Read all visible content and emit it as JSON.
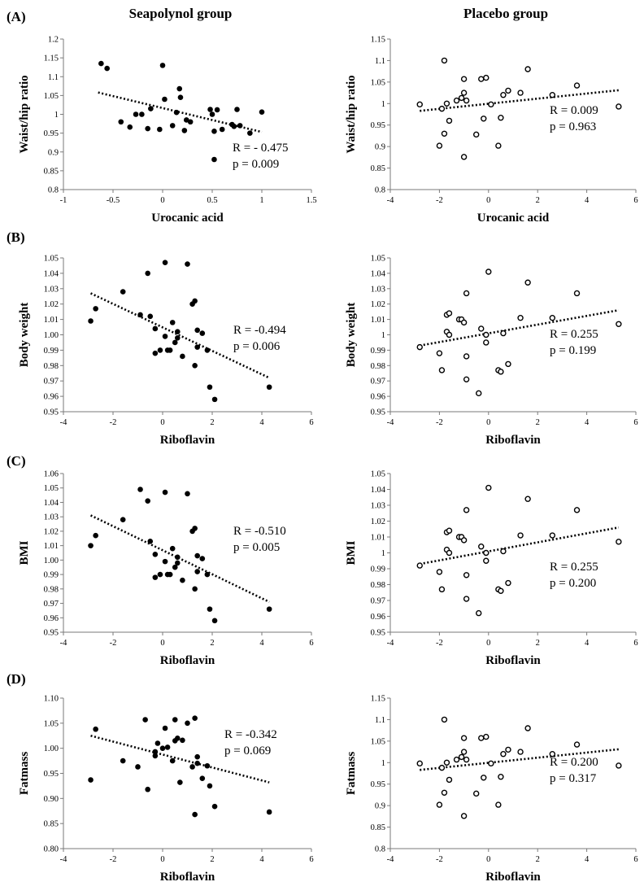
{
  "figure": {
    "left_column_title": "Seapolynol group",
    "right_column_title": "Placebo group",
    "row_letters": [
      "(A)",
      "(B)",
      "(C)",
      "(D)"
    ]
  },
  "chart_data": [
    {
      "type": "scatter",
      "group": "Seapolynol group",
      "row": "(A)",
      "xlabel": "Urocanic acid",
      "ylabel": "Waist/hip ratio",
      "xlim": [
        -1,
        1.5
      ],
      "ylim": [
        0.8,
        1.2
      ],
      "xticks": [
        "-1",
        "-0.5",
        "0",
        "0.5",
        "1",
        "1.5"
      ],
      "yticks": [
        "0.8",
        "0.85",
        "0.9",
        "0.95",
        "1",
        "1.05",
        "1.1",
        "1.15",
        "1.2"
      ],
      "marker": "filled",
      "points": [
        [
          -0.62,
          1.135
        ],
        [
          -0.56,
          1.122
        ],
        [
          -0.42,
          0.98
        ],
        [
          -0.33,
          0.966
        ],
        [
          -0.27,
          1.0
        ],
        [
          -0.21,
          1.0
        ],
        [
          -0.15,
          0.962
        ],
        [
          -0.12,
          1.015
        ],
        [
          -0.03,
          0.96
        ],
        [
          0.0,
          1.13
        ],
        [
          0.02,
          1.04
        ],
        [
          0.1,
          0.97
        ],
        [
          0.14,
          1.005
        ],
        [
          0.17,
          1.068
        ],
        [
          0.18,
          1.045
        ],
        [
          0.22,
          0.957
        ],
        [
          0.24,
          0.985
        ],
        [
          0.28,
          0.98
        ],
        [
          0.48,
          1.013
        ],
        [
          0.5,
          1.0
        ],
        [
          0.52,
          0.955
        ],
        [
          0.55,
          1.012
        ],
        [
          0.52,
          0.88
        ],
        [
          0.6,
          0.96
        ],
        [
          0.7,
          0.973
        ],
        [
          0.75,
          1.013
        ],
        [
          0.78,
          0.97
        ],
        [
          0.88,
          0.95
        ],
        [
          1.0,
          1.006
        ],
        [
          0.72,
          0.968
        ]
      ],
      "trendline": [
        [
          -0.65,
          1.058
        ],
        [
          1.0,
          0.953
        ]
      ],
      "annotations": [
        "R = - 0.475",
        "p = 0.009"
      ]
    },
    {
      "type": "scatter",
      "group": "Placebo group",
      "row": "(A)",
      "xlabel": "Urocanic acid",
      "ylabel": "Waist/hip ratio",
      "xlim": [
        -4,
        6
      ],
      "ylim": [
        0.8,
        1.15
      ],
      "xticks": [
        "-4",
        "-2",
        "0",
        "2",
        "4",
        "6"
      ],
      "yticks": [
        "0.8",
        "0.85",
        "0.9",
        "0.95",
        "1",
        "1.05",
        "1.1",
        "1.15"
      ],
      "marker": "open",
      "points": [
        [
          -2.8,
          0.998
        ],
        [
          -1.8,
          1.1
        ],
        [
          -1.9,
          0.988
        ],
        [
          -1.8,
          0.93
        ],
        [
          -1.6,
          0.96
        ],
        [
          -2.0,
          0.902
        ],
        [
          -1.7,
          1.0
        ],
        [
          -1.3,
          1.007
        ],
        [
          -1.1,
          1.013
        ],
        [
          -1.0,
          1.025
        ],
        [
          -1.0,
          1.057
        ],
        [
          -0.9,
          1.007
        ],
        [
          -1.0,
          0.876
        ],
        [
          -0.5,
          0.928
        ],
        [
          -0.3,
          1.057
        ],
        [
          -0.1,
          1.06
        ],
        [
          -0.2,
          0.965
        ],
        [
          0.1,
          0.998
        ],
        [
          0.4,
          0.902
        ],
        [
          0.5,
          0.967
        ],
        [
          0.6,
          1.02
        ],
        [
          0.8,
          1.03
        ],
        [
          1.3,
          1.025
        ],
        [
          1.6,
          1.08
        ],
        [
          2.6,
          1.02
        ],
        [
          3.6,
          1.042
        ],
        [
          5.3,
          0.993
        ]
      ],
      "trendline": [
        [
          -2.8,
          0.983
        ],
        [
          5.3,
          1.031
        ]
      ],
      "annotations": [
        "R = 0.009",
        "p = 0.963"
      ]
    },
    {
      "type": "scatter",
      "group": "Seapolynol group",
      "row": "(B)",
      "xlabel": "Riboflavin",
      "ylabel": "Body weight",
      "xlim": [
        -4,
        6
      ],
      "ylim": [
        0.95,
        1.05
      ],
      "xticks": [
        "-4",
        "-2",
        "0",
        "2",
        "4",
        "6"
      ],
      "yticks": [
        "0.95",
        "0.96",
        "0.97",
        "0.98",
        "0.99",
        "1.00",
        "1.01",
        "1.02",
        "1.03",
        "1.04",
        "1.05"
      ],
      "marker": "filled",
      "points": [
        [
          -2.9,
          1.009
        ],
        [
          -2.7,
          1.017
        ],
        [
          -1.6,
          1.028
        ],
        [
          -0.9,
          1.013
        ],
        [
          -0.6,
          1.04
        ],
        [
          -0.5,
          1.012
        ],
        [
          -0.3,
          1.004
        ],
        [
          -0.3,
          0.988
        ],
        [
          -0.1,
          0.99
        ],
        [
          0.1,
          1.047
        ],
        [
          0.1,
          0.999
        ],
        [
          0.2,
          0.99
        ],
        [
          0.4,
          1.008
        ],
        [
          0.5,
          0.995
        ],
        [
          0.6,
          1.002
        ],
        [
          0.6,
          0.998
        ],
        [
          0.8,
          0.986
        ],
        [
          1.0,
          1.046
        ],
        [
          1.2,
          1.02
        ],
        [
          1.3,
          1.022
        ],
        [
          1.3,
          0.98
        ],
        [
          1.4,
          1.003
        ],
        [
          1.4,
          0.992
        ],
        [
          1.6,
          1.001
        ],
        [
          1.8,
          0.99
        ],
        [
          1.9,
          0.966
        ],
        [
          2.1,
          0.958
        ],
        [
          4.3,
          0.966
        ],
        [
          0.3,
          0.99
        ]
      ],
      "trendline": [
        [
          -2.9,
          1.027
        ],
        [
          4.3,
          0.972
        ]
      ],
      "annotations": [
        "R = -0.494",
        "p = 0.006"
      ]
    },
    {
      "type": "scatter",
      "group": "Placebo group",
      "row": "(B)",
      "xlabel": "Riboflavin",
      "ylabel": "Body weight",
      "xlim": [
        -4,
        6
      ],
      "ylim": [
        0.95,
        1.05
      ],
      "xticks": [
        "-4",
        "-2",
        "0",
        "2",
        "4",
        "6"
      ],
      "yticks": [
        "0.95",
        "0.96",
        "0.97",
        "0.98",
        "0.99",
        "1",
        "1.01",
        "1.02",
        "1.03",
        "1.04",
        "1.05"
      ],
      "marker": "open",
      "points": [
        [
          -2.8,
          0.992
        ],
        [
          -2.0,
          0.988
        ],
        [
          -1.9,
          0.977
        ],
        [
          -1.7,
          1.013
        ],
        [
          -1.6,
          1.014
        ],
        [
          -1.7,
          1.002
        ],
        [
          -1.6,
          1.0
        ],
        [
          -1.2,
          1.01
        ],
        [
          -1.1,
          1.01
        ],
        [
          -1.0,
          1.008
        ],
        [
          -0.9,
          1.027
        ],
        [
          -0.9,
          0.986
        ],
        [
          -0.9,
          0.971
        ],
        [
          -0.4,
          0.962
        ],
        [
          -0.3,
          1.004
        ],
        [
          -0.1,
          1.0
        ],
        [
          -0.1,
          0.995
        ],
        [
          0.0,
          1.041
        ],
        [
          0.4,
          0.977
        ],
        [
          0.5,
          0.976
        ],
        [
          0.6,
          1.001
        ],
        [
          0.8,
          0.981
        ],
        [
          1.3,
          1.011
        ],
        [
          1.6,
          1.034
        ],
        [
          2.6,
          1.011
        ],
        [
          3.6,
          1.027
        ],
        [
          5.3,
          1.007
        ]
      ],
      "trendline": [
        [
          -2.8,
          0.993
        ],
        [
          5.3,
          1.016
        ]
      ],
      "annotations": [
        "R = 0.255",
        "p = 0.199"
      ]
    },
    {
      "type": "scatter",
      "group": "Seapolynol group",
      "row": "(C)",
      "xlabel": "Riboflavin",
      "ylabel": "BMI",
      "xlim": [
        -4,
        6
      ],
      "ylim": [
        0.95,
        1.06
      ],
      "xticks": [
        "-4",
        "-2",
        "0",
        "2",
        "4",
        "6"
      ],
      "yticks": [
        "0.95",
        "0.96",
        "0.97",
        "0.98",
        "0.99",
        "1.00",
        "1.01",
        "1.02",
        "1.03",
        "1.04",
        "1.05",
        "1.06"
      ],
      "marker": "filled",
      "points": [
        [
          -2.9,
          1.01
        ],
        [
          -2.7,
          1.017
        ],
        [
          -1.6,
          1.028
        ],
        [
          -0.9,
          1.049
        ],
        [
          -0.6,
          1.041
        ],
        [
          -0.5,
          1.013
        ],
        [
          -0.3,
          1.004
        ],
        [
          -0.3,
          0.988
        ],
        [
          -0.1,
          0.99
        ],
        [
          0.1,
          1.047
        ],
        [
          0.1,
          0.999
        ],
        [
          0.2,
          0.99
        ],
        [
          0.4,
          1.008
        ],
        [
          0.5,
          0.995
        ],
        [
          0.6,
          1.002
        ],
        [
          0.6,
          0.998
        ],
        [
          0.8,
          0.986
        ],
        [
          1.0,
          1.046
        ],
        [
          1.2,
          1.02
        ],
        [
          1.3,
          1.022
        ],
        [
          1.3,
          0.98
        ],
        [
          1.4,
          1.003
        ],
        [
          1.4,
          0.992
        ],
        [
          1.6,
          1.001
        ],
        [
          1.8,
          0.99
        ],
        [
          1.9,
          0.966
        ],
        [
          2.1,
          0.958
        ],
        [
          4.3,
          0.966
        ],
        [
          0.3,
          0.99
        ]
      ],
      "trendline": [
        [
          -2.9,
          1.031
        ],
        [
          4.3,
          0.971
        ]
      ],
      "annotations": [
        "R = -0.510",
        "p = 0.005"
      ]
    },
    {
      "type": "scatter",
      "group": "Placebo group",
      "row": "(C)",
      "xlabel": "Riboflavin",
      "ylabel": "BMI",
      "xlim": [
        -4,
        6
      ],
      "ylim": [
        0.95,
        1.05
      ],
      "xticks": [
        "-4",
        "-2",
        "0",
        "2",
        "4",
        "6"
      ],
      "yticks": [
        "0.95",
        "0.96",
        "0.97",
        "0.98",
        "0.99",
        "1",
        "1.01",
        "1.02",
        "1.03",
        "1.04",
        "1.05"
      ],
      "marker": "open",
      "points": [
        [
          -2.8,
          0.992
        ],
        [
          -2.0,
          0.988
        ],
        [
          -1.9,
          0.977
        ],
        [
          -1.7,
          1.013
        ],
        [
          -1.6,
          1.014
        ],
        [
          -1.7,
          1.002
        ],
        [
          -1.6,
          1.0
        ],
        [
          -1.2,
          1.01
        ],
        [
          -1.1,
          1.01
        ],
        [
          -1.0,
          1.008
        ],
        [
          -0.9,
          1.027
        ],
        [
          -0.9,
          0.986
        ],
        [
          -0.9,
          0.971
        ],
        [
          -0.4,
          0.962
        ],
        [
          -0.3,
          1.004
        ],
        [
          -0.1,
          1.0
        ],
        [
          -0.1,
          0.995
        ],
        [
          0.0,
          1.041
        ],
        [
          0.4,
          0.977
        ],
        [
          0.5,
          0.976
        ],
        [
          0.6,
          1.001
        ],
        [
          0.8,
          0.981
        ],
        [
          1.3,
          1.011
        ],
        [
          1.6,
          1.034
        ],
        [
          2.6,
          1.011
        ],
        [
          3.6,
          1.027
        ],
        [
          5.3,
          1.007
        ]
      ],
      "trendline": [
        [
          -2.8,
          0.993
        ],
        [
          5.3,
          1.016
        ]
      ],
      "annotations": [
        "R = 0.255",
        "p = 0.200"
      ]
    },
    {
      "type": "scatter",
      "group": "Seapolynol group",
      "row": "(D)",
      "xlabel": "Riboflavin",
      "ylabel": "Fatmass",
      "xlim": [
        -4,
        6
      ],
      "ylim": [
        0.8,
        1.1
      ],
      "xticks": [
        "-4",
        "-2",
        "0",
        "2",
        "4",
        "6"
      ],
      "yticks": [
        "0.80",
        "0.85",
        "0.90",
        "0.95",
        "1.00",
        "1.05",
        "1.10"
      ],
      "marker": "filled",
      "points": [
        [
          -2.9,
          0.937
        ],
        [
          -2.7,
          1.038
        ],
        [
          -1.6,
          0.975
        ],
        [
          -1.0,
          0.963
        ],
        [
          -0.7,
          1.057
        ],
        [
          -0.6,
          0.918
        ],
        [
          -0.3,
          0.993
        ],
        [
          -0.3,
          0.985
        ],
        [
          -0.2,
          1.01
        ],
        [
          0.1,
          1.04
        ],
        [
          0.0,
          1.0
        ],
        [
          0.2,
          1.002
        ],
        [
          0.4,
          0.975
        ],
        [
          0.5,
          1.057
        ],
        [
          0.5,
          1.015
        ],
        [
          0.6,
          1.02
        ],
        [
          0.7,
          0.932
        ],
        [
          0.8,
          1.016
        ],
        [
          1.0,
          1.05
        ],
        [
          1.2,
          0.963
        ],
        [
          1.3,
          1.06
        ],
        [
          1.3,
          0.868
        ],
        [
          1.4,
          0.983
        ],
        [
          1.4,
          0.97
        ],
        [
          1.6,
          0.94
        ],
        [
          1.8,
          0.965
        ],
        [
          1.9,
          0.925
        ],
        [
          2.1,
          0.884
        ],
        [
          4.3,
          0.873
        ]
      ],
      "trendline": [
        [
          -2.9,
          1.025
        ],
        [
          4.3,
          0.932
        ]
      ],
      "annotations": [
        "R = -0.342",
        "p = 0.069"
      ]
    },
    {
      "type": "scatter",
      "group": "Placebo group",
      "row": "(D)",
      "xlabel": "Riboflavin",
      "ylabel": "Fatmass",
      "xlim": [
        -4,
        6
      ],
      "ylim": [
        0.8,
        1.15
      ],
      "xticks": [
        "-4",
        "-2",
        "0",
        "2",
        "4",
        "6"
      ],
      "yticks": [
        "0.8",
        "0.85",
        "0.9",
        "0.95",
        "1",
        "1.05",
        "1.1",
        "1.15"
      ],
      "marker": "open",
      "points": [
        [
          -2.8,
          0.998
        ],
        [
          -1.8,
          1.1
        ],
        [
          -1.9,
          0.988
        ],
        [
          -1.8,
          0.93
        ],
        [
          -1.6,
          0.96
        ],
        [
          -2.0,
          0.902
        ],
        [
          -1.7,
          1.0
        ],
        [
          -1.3,
          1.007
        ],
        [
          -1.1,
          1.013
        ],
        [
          -1.0,
          1.025
        ],
        [
          -1.0,
          1.057
        ],
        [
          -0.9,
          1.007
        ],
        [
          -1.0,
          0.876
        ],
        [
          -0.5,
          0.928
        ],
        [
          -0.3,
          1.057
        ],
        [
          -0.1,
          1.06
        ],
        [
          -0.2,
          0.965
        ],
        [
          0.1,
          0.998
        ],
        [
          0.4,
          0.902
        ],
        [
          0.5,
          0.967
        ],
        [
          0.6,
          1.02
        ],
        [
          0.8,
          1.03
        ],
        [
          1.3,
          1.025
        ],
        [
          1.6,
          1.08
        ],
        [
          2.6,
          1.02
        ],
        [
          3.6,
          1.042
        ],
        [
          5.3,
          0.993
        ]
      ],
      "trendline": [
        [
          -2.8,
          0.983
        ],
        [
          5.3,
          1.031
        ]
      ],
      "annotations": [
        "R = 0.200",
        "p = 0.317"
      ]
    }
  ]
}
